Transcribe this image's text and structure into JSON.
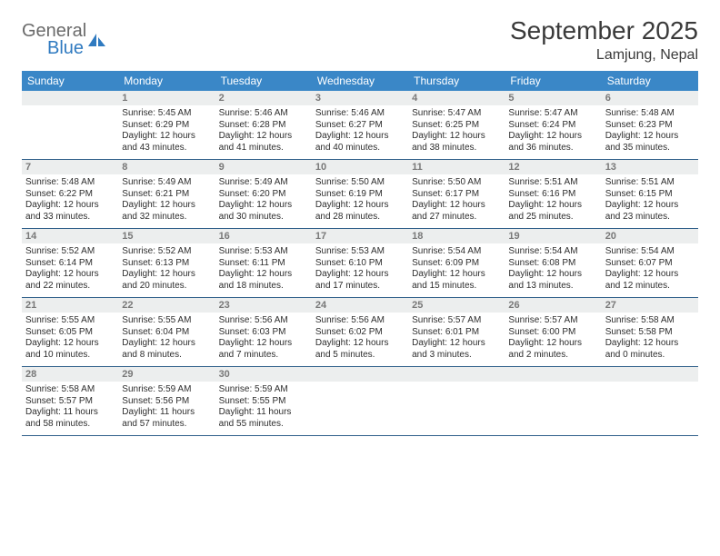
{
  "brand": {
    "line1": "General",
    "line2": "Blue"
  },
  "title": "September 2025",
  "location": "Lamjung, Nepal",
  "header_color": "#3a87c7",
  "rule_color": "#2f5f8a",
  "daynum_bg": "#eceeee",
  "text_color": "#2d2d2d",
  "columns": [
    "Sunday",
    "Monday",
    "Tuesday",
    "Wednesday",
    "Thursday",
    "Friday",
    "Saturday"
  ],
  "weeks": [
    [
      {
        "n": "",
        "sr": "",
        "ss": "",
        "dl": ""
      },
      {
        "n": "1",
        "sr": "Sunrise: 5:45 AM",
        "ss": "Sunset: 6:29 PM",
        "dl": "Daylight: 12 hours and 43 minutes."
      },
      {
        "n": "2",
        "sr": "Sunrise: 5:46 AM",
        "ss": "Sunset: 6:28 PM",
        "dl": "Daylight: 12 hours and 41 minutes."
      },
      {
        "n": "3",
        "sr": "Sunrise: 5:46 AM",
        "ss": "Sunset: 6:27 PM",
        "dl": "Daylight: 12 hours and 40 minutes."
      },
      {
        "n": "4",
        "sr": "Sunrise: 5:47 AM",
        "ss": "Sunset: 6:25 PM",
        "dl": "Daylight: 12 hours and 38 minutes."
      },
      {
        "n": "5",
        "sr": "Sunrise: 5:47 AM",
        "ss": "Sunset: 6:24 PM",
        "dl": "Daylight: 12 hours and 36 minutes."
      },
      {
        "n": "6",
        "sr": "Sunrise: 5:48 AM",
        "ss": "Sunset: 6:23 PM",
        "dl": "Daylight: 12 hours and 35 minutes."
      }
    ],
    [
      {
        "n": "7",
        "sr": "Sunrise: 5:48 AM",
        "ss": "Sunset: 6:22 PM",
        "dl": "Daylight: 12 hours and 33 minutes."
      },
      {
        "n": "8",
        "sr": "Sunrise: 5:49 AM",
        "ss": "Sunset: 6:21 PM",
        "dl": "Daylight: 12 hours and 32 minutes."
      },
      {
        "n": "9",
        "sr": "Sunrise: 5:49 AM",
        "ss": "Sunset: 6:20 PM",
        "dl": "Daylight: 12 hours and 30 minutes."
      },
      {
        "n": "10",
        "sr": "Sunrise: 5:50 AM",
        "ss": "Sunset: 6:19 PM",
        "dl": "Daylight: 12 hours and 28 minutes."
      },
      {
        "n": "11",
        "sr": "Sunrise: 5:50 AM",
        "ss": "Sunset: 6:17 PM",
        "dl": "Daylight: 12 hours and 27 minutes."
      },
      {
        "n": "12",
        "sr": "Sunrise: 5:51 AM",
        "ss": "Sunset: 6:16 PM",
        "dl": "Daylight: 12 hours and 25 minutes."
      },
      {
        "n": "13",
        "sr": "Sunrise: 5:51 AM",
        "ss": "Sunset: 6:15 PM",
        "dl": "Daylight: 12 hours and 23 minutes."
      }
    ],
    [
      {
        "n": "14",
        "sr": "Sunrise: 5:52 AM",
        "ss": "Sunset: 6:14 PM",
        "dl": "Daylight: 12 hours and 22 minutes."
      },
      {
        "n": "15",
        "sr": "Sunrise: 5:52 AM",
        "ss": "Sunset: 6:13 PM",
        "dl": "Daylight: 12 hours and 20 minutes."
      },
      {
        "n": "16",
        "sr": "Sunrise: 5:53 AM",
        "ss": "Sunset: 6:11 PM",
        "dl": "Daylight: 12 hours and 18 minutes."
      },
      {
        "n": "17",
        "sr": "Sunrise: 5:53 AM",
        "ss": "Sunset: 6:10 PM",
        "dl": "Daylight: 12 hours and 17 minutes."
      },
      {
        "n": "18",
        "sr": "Sunrise: 5:54 AM",
        "ss": "Sunset: 6:09 PM",
        "dl": "Daylight: 12 hours and 15 minutes."
      },
      {
        "n": "19",
        "sr": "Sunrise: 5:54 AM",
        "ss": "Sunset: 6:08 PM",
        "dl": "Daylight: 12 hours and 13 minutes."
      },
      {
        "n": "20",
        "sr": "Sunrise: 5:54 AM",
        "ss": "Sunset: 6:07 PM",
        "dl": "Daylight: 12 hours and 12 minutes."
      }
    ],
    [
      {
        "n": "21",
        "sr": "Sunrise: 5:55 AM",
        "ss": "Sunset: 6:05 PM",
        "dl": "Daylight: 12 hours and 10 minutes."
      },
      {
        "n": "22",
        "sr": "Sunrise: 5:55 AM",
        "ss": "Sunset: 6:04 PM",
        "dl": "Daylight: 12 hours and 8 minutes."
      },
      {
        "n": "23",
        "sr": "Sunrise: 5:56 AM",
        "ss": "Sunset: 6:03 PM",
        "dl": "Daylight: 12 hours and 7 minutes."
      },
      {
        "n": "24",
        "sr": "Sunrise: 5:56 AM",
        "ss": "Sunset: 6:02 PM",
        "dl": "Daylight: 12 hours and 5 minutes."
      },
      {
        "n": "25",
        "sr": "Sunrise: 5:57 AM",
        "ss": "Sunset: 6:01 PM",
        "dl": "Daylight: 12 hours and 3 minutes."
      },
      {
        "n": "26",
        "sr": "Sunrise: 5:57 AM",
        "ss": "Sunset: 6:00 PM",
        "dl": "Daylight: 12 hours and 2 minutes."
      },
      {
        "n": "27",
        "sr": "Sunrise: 5:58 AM",
        "ss": "Sunset: 5:58 PM",
        "dl": "Daylight: 12 hours and 0 minutes."
      }
    ],
    [
      {
        "n": "28",
        "sr": "Sunrise: 5:58 AM",
        "ss": "Sunset: 5:57 PM",
        "dl": "Daylight: 11 hours and 58 minutes."
      },
      {
        "n": "29",
        "sr": "Sunrise: 5:59 AM",
        "ss": "Sunset: 5:56 PM",
        "dl": "Daylight: 11 hours and 57 minutes."
      },
      {
        "n": "30",
        "sr": "Sunrise: 5:59 AM",
        "ss": "Sunset: 5:55 PM",
        "dl": "Daylight: 11 hours and 55 minutes."
      },
      {
        "n": "",
        "sr": "",
        "ss": "",
        "dl": ""
      },
      {
        "n": "",
        "sr": "",
        "ss": "",
        "dl": ""
      },
      {
        "n": "",
        "sr": "",
        "ss": "",
        "dl": ""
      },
      {
        "n": "",
        "sr": "",
        "ss": "",
        "dl": ""
      }
    ]
  ]
}
